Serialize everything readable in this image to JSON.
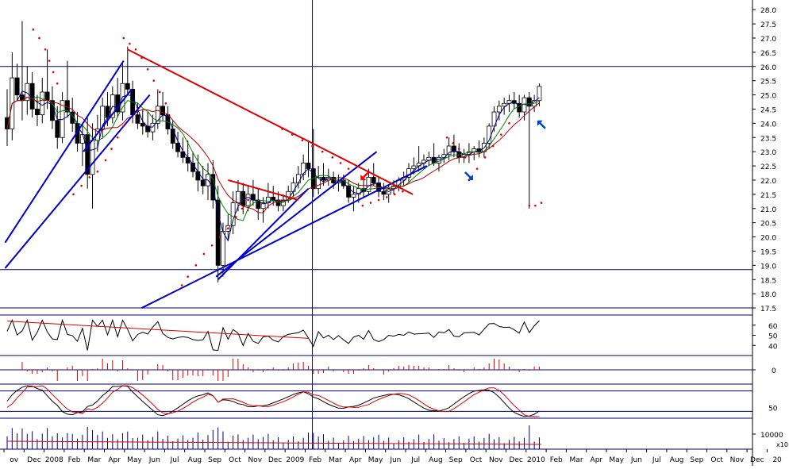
{
  "chart_data": {
    "type": "candlestick",
    "colors": {
      "up": "#ffffff",
      "down": "#000000",
      "wick": "#000000",
      "ma_short": "#000080",
      "ma_mid": "#008000",
      "ma_long": "#b00000",
      "trend_blue": "#0000cc",
      "trend_red": "#dd0000",
      "parabolic_sar": "#e00000",
      "guide": "#000080",
      "axis": "#000000",
      "arrow_red": "#ff0000",
      "arrow_blue": "#0044cc"
    },
    "x_axis": {
      "labels": [
        "ov",
        "Dec",
        "2008",
        "Feb",
        "Mar",
        "Apr",
        "May",
        "Jun",
        "Jul",
        "Aug",
        "Sep",
        "Oct",
        "Nov",
        "Dec",
        "2009",
        "Feb",
        "Mar",
        "Apr",
        "May",
        "Jun",
        "Jul",
        "Aug",
        "Sep",
        "Oct",
        "Nov",
        "Dec",
        "2010",
        "Feb",
        "Mar",
        "Apr",
        "May",
        "Jun",
        "Jul",
        "Aug",
        "Sep",
        "Oct",
        "Nov",
        "Dec",
        "20"
      ],
      "start_index": 0,
      "period_months": 38
    },
    "price_panel": {
      "y_ticks": [
        "28.0",
        "27.5",
        "27.0",
        "26.5",
        "26.0",
        "25.5",
        "25.0",
        "24.5",
        "24.0",
        "23.5",
        "23.0",
        "22.5",
        "22.0",
        "21.5",
        "21.0",
        "20.5",
        "20.0",
        "19.5",
        "19.0",
        "18.5",
        "18.0",
        "17.5"
      ],
      "ylim": [
        17.25,
        28.2
      ],
      "horizontal_guides": [
        26.0,
        18.85,
        17.5
      ],
      "vertical_guide_month_index": 15.2,
      "candles": [
        [
          0,
          24.2,
          25.2,
          23.2,
          23.8
        ],
        [
          0.25,
          23.8,
          26.5,
          23.4,
          25.6
        ],
        [
          0.5,
          25.6,
          26.1,
          24.8,
          25.0
        ],
        [
          0.75,
          25.0,
          27.6,
          24.1,
          24.8
        ],
        [
          1,
          24.8,
          26.0,
          24.3,
          25.4
        ],
        [
          1.25,
          25.4,
          25.8,
          24.2,
          24.5
        ],
        [
          1.5,
          24.5,
          25.0,
          23.9,
          24.3
        ],
        [
          1.75,
          24.3,
          25.6,
          24.0,
          25.1
        ],
        [
          2,
          25.1,
          26.6,
          24.5,
          24.8
        ],
        [
          2.25,
          24.8,
          25.3,
          23.8,
          24.1
        ],
        [
          2.5,
          24.1,
          24.6,
          23.1,
          23.5
        ],
        [
          2.75,
          23.5,
          25.1,
          23.3,
          24.8
        ],
        [
          3,
          24.8,
          26.2,
          24.2,
          24.4
        ],
        [
          3.25,
          24.4,
          24.9,
          23.7,
          24.0
        ],
        [
          3.5,
          24.0,
          24.4,
          23.0,
          23.3
        ],
        [
          3.75,
          23.3,
          24.0,
          22.5,
          23.6
        ],
        [
          4,
          23.6,
          24.2,
          21.7,
          22.2
        ],
        [
          4.25,
          22.2,
          24.0,
          21.0,
          23.4
        ],
        [
          4.5,
          23.4,
          24.3,
          23.0,
          23.8
        ],
        [
          4.75,
          23.8,
          24.9,
          23.5,
          24.6
        ],
        [
          5,
          24.6,
          25.1,
          23.9,
          24.2
        ],
        [
          5.25,
          24.2,
          25.3,
          24.0,
          25.0
        ],
        [
          5.5,
          25.0,
          25.6,
          24.2,
          24.4
        ],
        [
          5.75,
          24.4,
          26.1,
          24.1,
          25.4
        ],
        [
          6,
          25.4,
          26.7,
          25.0,
          25.2
        ],
        [
          6.25,
          25.2,
          25.5,
          24.0,
          24.3
        ],
        [
          6.5,
          24.3,
          24.7,
          23.8,
          24.0
        ],
        [
          6.75,
          24.0,
          24.5,
          23.6,
          23.9
        ],
        [
          7,
          23.9,
          24.4,
          23.5,
          23.7
        ],
        [
          7.25,
          23.7,
          24.3,
          23.4,
          24.0
        ],
        [
          7.5,
          24.0,
          25.2,
          23.8,
          24.6
        ],
        [
          7.75,
          24.6,
          25.1,
          24.1,
          24.3
        ],
        [
          8,
          24.3,
          24.6,
          23.6,
          23.8
        ],
        [
          8.25,
          23.8,
          24.1,
          23.1,
          23.3
        ],
        [
          8.5,
          23.3,
          23.7,
          22.8,
          23.0
        ],
        [
          8.75,
          23.0,
          23.5,
          22.6,
          22.8
        ],
        [
          9,
          22.8,
          23.4,
          22.3,
          22.6
        ],
        [
          9.25,
          22.6,
          23.0,
          22.1,
          22.3
        ],
        [
          9.5,
          22.3,
          22.9,
          21.6,
          22.0
        ],
        [
          9.75,
          22.0,
          22.5,
          21.5,
          21.8
        ],
        [
          10,
          21.8,
          22.6,
          21.3,
          22.2
        ],
        [
          10.25,
          22.2,
          22.7,
          21.0,
          21.3
        ],
        [
          10.5,
          21.3,
          21.8,
          18.4,
          19.0
        ],
        [
          10.75,
          19.0,
          20.5,
          18.6,
          20.2
        ],
        [
          11,
          20.2,
          20.8,
          19.9,
          20.4
        ],
        [
          11.25,
          20.4,
          21.6,
          20.1,
          21.2
        ],
        [
          11.5,
          21.2,
          22.0,
          20.9,
          21.6
        ],
        [
          11.75,
          21.6,
          21.9,
          20.8,
          21.1
        ],
        [
          12,
          21.1,
          21.8,
          20.9,
          21.5
        ],
        [
          12.25,
          21.5,
          22.0,
          21.1,
          21.3
        ],
        [
          12.5,
          21.3,
          21.7,
          20.6,
          21.0
        ],
        [
          12.75,
          21.0,
          21.4,
          20.5,
          21.2
        ],
        [
          13,
          21.2,
          21.9,
          21.0,
          21.4
        ],
        [
          13.25,
          21.4,
          21.8,
          21.1,
          21.3
        ],
        [
          13.5,
          21.3,
          21.6,
          20.9,
          21.1
        ],
        [
          13.75,
          21.1,
          21.5,
          20.9,
          21.3
        ],
        [
          14,
          21.3,
          21.8,
          21.2,
          21.6
        ],
        [
          14.25,
          21.6,
          22.1,
          21.4,
          21.9
        ],
        [
          14.5,
          21.9,
          22.5,
          21.7,
          22.2
        ],
        [
          14.75,
          22.2,
          22.9,
          22.0,
          22.6
        ],
        [
          15,
          22.6,
          23.4,
          22.1,
          22.4
        ],
        [
          15.25,
          22.4,
          23.8,
          21.4,
          21.7
        ],
        [
          15.5,
          21.7,
          22.5,
          21.5,
          22.1
        ],
        [
          15.75,
          22.1,
          22.6,
          21.8,
          22.0
        ],
        [
          16,
          22.0,
          22.4,
          21.8,
          22.1
        ],
        [
          16.25,
          22.1,
          22.3,
          21.7,
          21.9
        ],
        [
          16.5,
          21.9,
          22.2,
          21.6,
          22.0
        ],
        [
          16.75,
          22.0,
          22.2,
          21.7,
          21.8
        ],
        [
          17,
          21.8,
          22.0,
          21.2,
          21.4
        ],
        [
          17.25,
          21.4,
          21.8,
          20.9,
          21.5
        ],
        [
          17.5,
          21.5,
          21.9,
          21.2,
          21.7
        ],
        [
          17.75,
          21.7,
          22.0,
          21.4,
          21.6
        ],
        [
          18,
          21.6,
          22.4,
          21.5,
          22.1
        ],
        [
          18.25,
          22.1,
          22.6,
          21.8,
          21.9
        ],
        [
          18.5,
          21.9,
          22.1,
          21.4,
          21.6
        ],
        [
          18.75,
          21.6,
          21.9,
          21.3,
          21.5
        ],
        [
          19,
          21.5,
          21.8,
          21.2,
          21.7
        ],
        [
          19.25,
          21.7,
          22.0,
          21.5,
          21.8
        ],
        [
          19.5,
          21.8,
          22.1,
          21.6,
          22.0
        ],
        [
          19.75,
          22.0,
          22.3,
          21.8,
          22.1
        ],
        [
          20,
          22.1,
          22.6,
          21.9,
          22.4
        ],
        [
          20.25,
          22.4,
          22.8,
          22.2,
          22.5
        ],
        [
          20.5,
          22.5,
          23.2,
          22.3,
          22.6
        ],
        [
          20.75,
          22.6,
          22.9,
          22.4,
          22.7
        ],
        [
          21,
          22.7,
          23.0,
          22.5,
          22.8
        ],
        [
          21.25,
          22.8,
          23.3,
          22.5,
          22.6
        ],
        [
          21.5,
          22.6,
          22.9,
          22.3,
          22.8
        ],
        [
          21.75,
          22.8,
          23.1,
          22.6,
          22.9
        ],
        [
          22,
          22.9,
          23.5,
          22.7,
          23.2
        ],
        [
          22.25,
          23.2,
          23.6,
          22.8,
          23.0
        ],
        [
          22.5,
          23.0,
          23.3,
          22.6,
          22.8
        ],
        [
          22.75,
          22.8,
          23.1,
          22.6,
          22.9
        ],
        [
          23,
          22.9,
          23.3,
          22.6,
          23.0
        ],
        [
          23.25,
          23.0,
          23.2,
          22.7,
          23.1
        ],
        [
          23.5,
          23.1,
          23.4,
          22.8,
          23.0
        ],
        [
          23.75,
          23.0,
          23.5,
          22.8,
          23.3
        ],
        [
          24,
          23.3,
          24.0,
          23.1,
          23.9
        ],
        [
          24.25,
          23.9,
          24.6,
          23.7,
          24.4
        ],
        [
          24.5,
          24.4,
          24.8,
          24.1,
          24.6
        ],
        [
          24.75,
          24.6,
          24.9,
          24.3,
          24.7
        ],
        [
          25,
          24.7,
          25.0,
          24.4,
          24.8
        ],
        [
          25.25,
          24.8,
          25.1,
          24.5,
          24.7
        ],
        [
          25.5,
          24.7,
          25.0,
          24.2,
          24.4
        ],
        [
          25.75,
          24.4,
          25.0,
          24.1,
          24.9
        ],
        [
          26,
          24.9,
          25.1,
          21.0,
          24.6
        ],
        [
          26.25,
          24.6,
          25.0,
          24.4,
          24.8
        ],
        [
          26.5,
          24.8,
          25.4,
          24.6,
          25.3
        ]
      ],
      "trend_lines_blue": [
        [
          [
            -0.1,
            19.8
          ],
          [
            5.8,
            26.2
          ]
        ],
        [
          [
            -0.1,
            18.9
          ],
          [
            7.1,
            25.0
          ]
        ],
        [
          [
            3.8,
            23.0
          ],
          [
            6.2,
            25.2
          ]
        ],
        [
          [
            10.5,
            18.5
          ],
          [
            15.0,
            21.7
          ]
        ],
        [
          [
            10.4,
            18.6
          ],
          [
            18.4,
            23.0
          ]
        ],
        [
          [
            6.7,
            17.5
          ],
          [
            20.9,
            22.5
          ]
        ]
      ],
      "trend_lines_red": [
        [
          [
            6.0,
            26.6
          ],
          [
            20.2,
            21.5
          ]
        ],
        [
          [
            11.0,
            22.0
          ],
          [
            14.5,
            21.3
          ]
        ]
      ],
      "sar_dots": [
        [
          [
            1.3,
            27.3
          ],
          [
            1.6,
            27.0
          ],
          [
            1.9,
            26.6
          ],
          [
            2.1,
            26.2
          ],
          [
            2.3,
            25.8
          ],
          [
            2.5,
            25.4
          ]
        ],
        [
          [
            3.3,
            21.5
          ],
          [
            3.7,
            21.8
          ],
          [
            4.1,
            22.1
          ],
          [
            4.5,
            22.3
          ],
          [
            4.9,
            22.7
          ],
          [
            5.2,
            23.1
          ],
          [
            5.5,
            23.5
          ],
          [
            5.8,
            23.9
          ]
        ],
        [
          [
            5.8,
            27.0
          ],
          [
            6.1,
            26.8
          ],
          [
            6.4,
            26.6
          ],
          [
            6.7,
            26.3
          ],
          [
            7.0,
            25.9
          ],
          [
            7.3,
            25.5
          ],
          [
            7.6,
            25.1
          ],
          [
            7.9,
            24.7
          ]
        ],
        [
          [
            8.7,
            18.3
          ],
          [
            9.0,
            18.6
          ],
          [
            9.4,
            19.0
          ],
          [
            9.8,
            19.4
          ],
          [
            10.2,
            19.7
          ],
          [
            10.6,
            20.0
          ],
          [
            11.0,
            20.3
          ],
          [
            11.4,
            20.7
          ],
          [
            11.7,
            21.0
          ],
          [
            12.0,
            21.3
          ]
        ],
        [
          [
            13.7,
            23.8
          ],
          [
            14.2,
            23.6
          ],
          [
            14.7,
            23.4
          ],
          [
            15.2,
            23.2
          ],
          [
            15.7,
            23.0
          ],
          [
            16.2,
            22.8
          ],
          [
            16.6,
            22.6
          ],
          [
            17.0,
            22.4
          ]
        ],
        [
          [
            17.7,
            21.1
          ],
          [
            18.1,
            21.2
          ],
          [
            18.5,
            21.3
          ],
          [
            18.9,
            21.4
          ],
          [
            19.3,
            21.5
          ],
          [
            19.7,
            21.6
          ]
        ],
        [
          [
            21.9,
            23.5
          ],
          [
            22.2,
            23.3
          ],
          [
            22.5,
            23.1
          ],
          [
            22.8,
            22.8
          ]
        ],
        [
          [
            23.0,
            22.0
          ],
          [
            23.4,
            22.4
          ],
          [
            23.8,
            22.8
          ],
          [
            24.2,
            23.2
          ],
          [
            24.6,
            23.6
          ],
          [
            25.0,
            24.0
          ]
        ],
        [
          [
            26.0,
            21.1
          ],
          [
            26.3,
            21.1
          ],
          [
            26.6,
            21.2
          ]
        ]
      ],
      "arrows": [
        {
          "color": "red",
          "tip": [
            17.6,
            22.0
          ],
          "dir": "down-left"
        },
        {
          "color": "blue",
          "tip": [
            23.2,
            22.0
          ],
          "dir": "down-right"
        },
        {
          "color": "blue",
          "tip": [
            26.4,
            24.1
          ],
          "dir": "up-left"
        }
      ]
    },
    "rsi_panel": {
      "y_ticks": [
        "60",
        "50",
        "40"
      ],
      "levels": [
        60,
        50,
        40
      ],
      "ylim": [
        30,
        70
      ]
    },
    "macd_panel": {
      "y_ticks": [
        "0"
      ],
      "zero_line": 0
    },
    "stoch_panel": {
      "y_ticks": [
        "50"
      ],
      "levels": [
        80,
        20
      ]
    },
    "volume_panel": {
      "y_ticks": [
        "10000"
      ],
      "scale_label": "x10"
    }
  }
}
